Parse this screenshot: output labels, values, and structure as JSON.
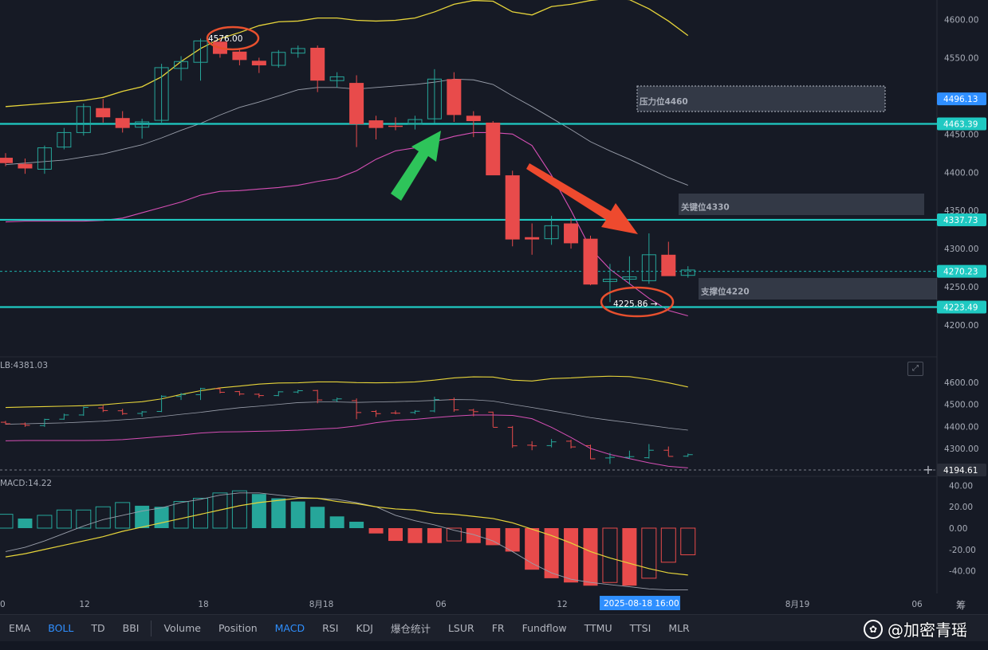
{
  "colors": {
    "background": "#161a25",
    "up": "#26a69a",
    "down": "#e84b4b",
    "key_line": "#1fc9c2",
    "boll_upper": "#e6d43a",
    "boll_mid": "#9a9fab",
    "boll_lower": "#d64fb5",
    "annotation": "#e8502e",
    "arrow_green": "#2ec45a",
    "arrow_red": "#ee4a2e",
    "accent": "#2f8fff"
  },
  "main_chart": {
    "price_axis_ticks": [
      "4600.00",
      "4550.00",
      "4500.00",
      "4450.00",
      "4400.00",
      "4350.00",
      "4300.00",
      "4250.00",
      "4200.00"
    ],
    "price_tags": [
      {
        "label": "4496.13",
        "color": "#2f8fff"
      },
      {
        "label": "4463.39",
        "color": "#1fc9c2"
      },
      {
        "label": "4337.73",
        "color": "#1fc9c2"
      },
      {
        "label": "4270.23",
        "color": "#1fc9c2"
      },
      {
        "label": "4223.49",
        "color": "#1fc9c2"
      }
    ],
    "zones": [
      {
        "label": "压力位4460"
      },
      {
        "label": "关键位4330"
      },
      {
        "label": "支撑位4220"
      }
    ],
    "high_marker": "4576.00",
    "low_marker": "4225.86",
    "candles": [
      [
        4419,
        4425,
        4408,
        4412
      ],
      [
        4411,
        4418,
        4398,
        4405
      ],
      [
        4404,
        4435,
        4398,
        4432
      ],
      [
        4433,
        4458,
        4430,
        4452
      ],
      [
        4452,
        4490,
        4448,
        4486
      ],
      [
        4484,
        4496,
        4465,
        4472
      ],
      [
        4471,
        4480,
        4452,
        4458
      ],
      [
        4459,
        4470,
        4444,
        4466
      ],
      [
        4468,
        4542,
        4465,
        4537
      ],
      [
        4536,
        4552,
        4520,
        4545
      ],
      [
        4544,
        4575,
        4520,
        4572
      ],
      [
        4571,
        4576,
        4550,
        4555
      ],
      [
        4558,
        4561,
        4540,
        4547
      ],
      [
        4546,
        4550,
        4530,
        4540
      ],
      [
        4540,
        4560,
        4537,
        4557
      ],
      [
        4556,
        4566,
        4550,
        4562
      ],
      [
        4563,
        4566,
        4505,
        4520
      ],
      [
        4520,
        4531,
        4511,
        4525
      ],
      [
        4517,
        4527,
        4433,
        4463
      ],
      [
        4468,
        4474,
        4443,
        4458
      ],
      [
        4461,
        4472,
        4455,
        4460
      ],
      [
        4463,
        4474,
        4456,
        4469
      ],
      [
        4470,
        4535,
        4464,
        4522
      ],
      [
        4522,
        4531,
        4466,
        4475
      ],
      [
        4474,
        4480,
        4446,
        4467
      ],
      [
        4465,
        4467,
        4398,
        4396
      ],
      [
        4396,
        4402,
        4303,
        4312
      ],
      [
        4315,
        4333,
        4292,
        4312
      ],
      [
        4313,
        4343,
        4305,
        4330
      ],
      [
        4333,
        4340,
        4300,
        4307
      ],
      [
        4313,
        4317,
        4252,
        4253
      ],
      [
        4257,
        4280,
        4230,
        4260
      ],
      [
        4260,
        4290,
        4253,
        4263
      ],
      [
        4258,
        4320,
        4254,
        4292
      ],
      [
        4292,
        4309,
        4265,
        4264
      ],
      [
        4265,
        4277,
        4262,
        4272
      ]
    ],
    "boll_upper": [
      4486,
      4488,
      4490,
      4492,
      4494,
      4498,
      4506,
      4512,
      4525,
      4545,
      4562,
      4575,
      4583,
      4592,
      4597,
      4598,
      4602,
      4602,
      4599,
      4598,
      4599,
      4602,
      4610,
      4620,
      4625,
      4624,
      4610,
      4606,
      4617,
      4620,
      4625,
      4628,
      4626,
      4614,
      4598,
      4579
    ],
    "boll_mid": [
      4410,
      4412,
      4414,
      4416,
      4420,
      4424,
      4430,
      4436,
      4445,
      4455,
      4464,
      4475,
      4485,
      4492,
      4500,
      4508,
      4511,
      4511,
      4509,
      4511,
      4513,
      4515,
      4518,
      4522,
      4521,
      4515,
      4500,
      4486,
      4471,
      4456,
      4440,
      4428,
      4417,
      4405,
      4393,
      4383
    ],
    "boll_lower": [
      4335,
      4336,
      4336,
      4336,
      4336,
      4337,
      4340,
      4347,
      4354,
      4361,
      4370,
      4375,
      4376,
      4378,
      4380,
      4383,
      4388,
      4392,
      4402,
      4417,
      4428,
      4432,
      4440,
      4447,
      4452,
      4452,
      4450,
      4435,
      4396,
      4350,
      4300,
      4273,
      4254,
      4235,
      4219,
      4212
    ]
  },
  "sub_chart": {
    "label": "LB:4381.03",
    "axis_ticks": [
      "4600.00",
      "4500.00",
      "4400.00",
      "4300.00"
    ],
    "dotted_level_tag": "4194.61"
  },
  "macd": {
    "label": "MACD:14.22",
    "axis_ticks": [
      "40.00",
      "20.00",
      "0.00",
      "-20.00",
      "-40.00"
    ],
    "hist": [
      13,
      9,
      12,
      17,
      17,
      20,
      24,
      21,
      20,
      25,
      28,
      33,
      35,
      32,
      28,
      25,
      20,
      11,
      6,
      -5,
      -12,
      -14,
      -14,
      -12,
      -14,
      -16,
      -22,
      -39,
      -47,
      -51,
      -54,
      -51,
      -54,
      -47,
      -32,
      -25
    ],
    "dif": [
      -22,
      -18,
      -12,
      -5,
      2,
      8,
      12,
      16,
      19,
      24,
      27,
      31,
      33,
      33,
      31,
      29,
      28,
      27,
      24,
      20,
      12,
      7,
      3,
      -2,
      -6,
      -12,
      -22,
      -33,
      -42,
      -48,
      -51,
      -53,
      -55,
      -57,
      -58,
      -58
    ],
    "dea": [
      -27,
      -24,
      -20,
      -16,
      -12,
      -8,
      -3,
      1,
      5,
      9,
      13,
      17,
      21,
      24,
      26,
      28,
      28,
      25,
      23,
      20,
      18,
      17,
      14,
      13,
      11,
      9,
      5,
      -1,
      -7,
      -14,
      -22,
      -28,
      -33,
      -38,
      -42,
      -44
    ]
  },
  "time_axis": {
    "labels": [
      "0",
      "12",
      "18",
      "8月18",
      "06",
      "12",
      "8月19",
      "06"
    ],
    "crosshair_label": "2025-08-18 16:00",
    "right_corner": "筹"
  },
  "toolbar": {
    "items": [
      {
        "label": "EMA",
        "active": false
      },
      {
        "label": "BOLL",
        "active": true
      },
      {
        "label": "TD",
        "active": false
      },
      {
        "label": "BBI",
        "active": false
      },
      {
        "label": "|",
        "active": false
      },
      {
        "label": "Volume",
        "active": false
      },
      {
        "label": "Position",
        "active": false
      },
      {
        "label": "MACD",
        "active": true
      },
      {
        "label": "RSI",
        "active": false
      },
      {
        "label": "KDJ",
        "active": false
      },
      {
        "label": "爆仓统计",
        "active": false
      },
      {
        "label": "LSUR",
        "active": false
      },
      {
        "label": "FR",
        "active": false
      },
      {
        "label": "Fundflow",
        "active": false
      },
      {
        "label": "TTMU",
        "active": false
      },
      {
        "label": "TTSI",
        "active": false
      },
      {
        "label": "MLR",
        "active": false
      }
    ]
  },
  "watermark": {
    "text": "@加密青瑶",
    "icon": "wechat-channel-icon"
  }
}
